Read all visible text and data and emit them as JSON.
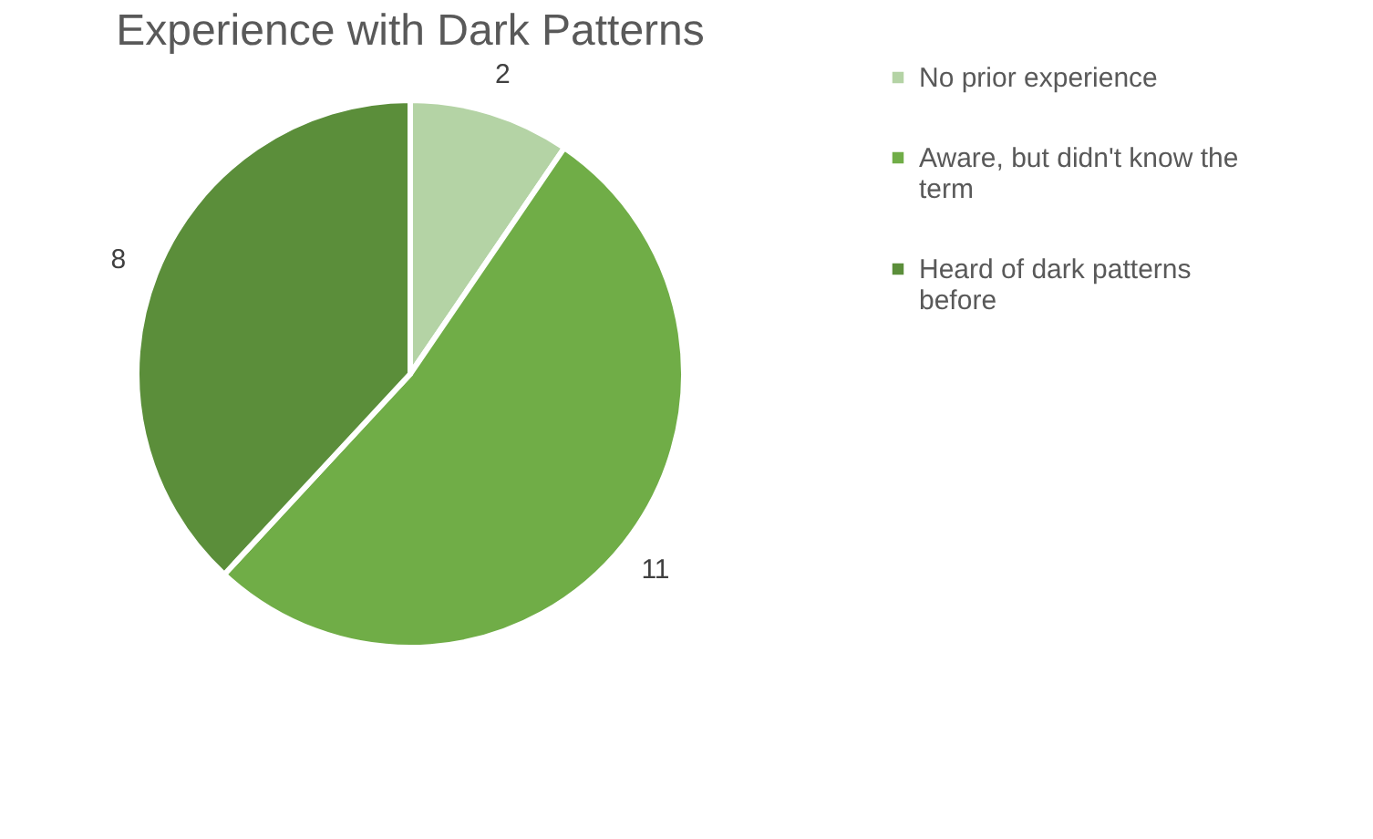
{
  "chart_data": {
    "type": "pie",
    "title": "Experience with Dark Patterns",
    "categories": [
      "No prior experience",
      "Aware, but didn't know the term",
      "Heard  of dark patterns before"
    ],
    "values": [
      2,
      11,
      8
    ],
    "colors": [
      "#b4d3a5",
      "#70ad47",
      "#5b8e3a"
    ],
    "data_labels": true,
    "legend": "right"
  }
}
